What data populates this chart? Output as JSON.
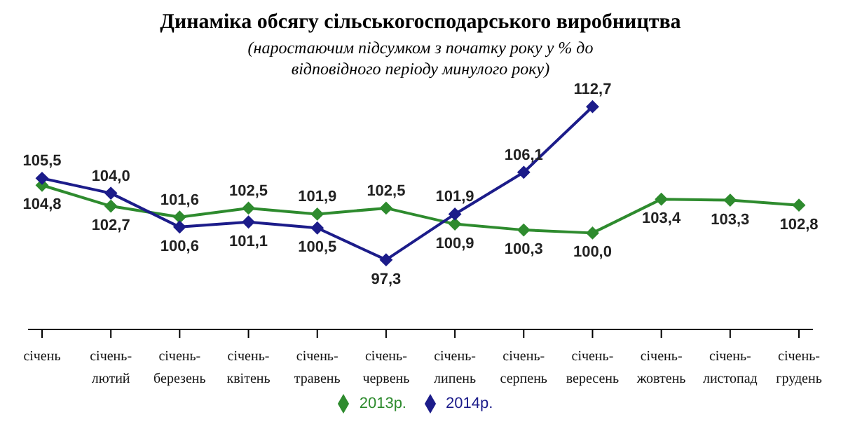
{
  "chart_data": {
    "type": "line",
    "title": "Динаміка обсягу сільськогосподарського виробництва",
    "subtitle": "(наростаючим підсумком з початку року у % до відповідного періоду минулого року)",
    "categories": [
      "січень",
      "січень-лютий",
      "січень-березень",
      "січень-квітень",
      "січень-травень",
      "січень-червень",
      "січень-липень",
      "січень-серпень",
      "січень-вересень",
      "січень-жовтень",
      "січень-листопад",
      "січень-грудень"
    ],
    "series": [
      {
        "name": "2013р.",
        "color": "#2e8b2e",
        "values": [
          104.8,
          102.7,
          101.6,
          102.5,
          101.9,
          102.5,
          100.9,
          100.3,
          100.0,
          103.4,
          103.3,
          102.8
        ],
        "value_labels": [
          "104,8",
          "102,7",
          "101,6",
          "102,5",
          "101,9",
          "102,5",
          "100,9",
          "100,3",
          "100,0",
          "103,4",
          "103,3",
          "102,8"
        ]
      },
      {
        "name": "2014р.",
        "color": "#1c1c8a",
        "values": [
          105.5,
          104.0,
          100.6,
          101.1,
          100.5,
          97.3,
          101.9,
          106.1,
          112.7,
          null,
          null,
          null
        ],
        "value_labels": [
          "105,5",
          "104,0",
          "100,6",
          "101,1",
          "100,5",
          "97,3",
          "101,9",
          "106,1",
          "112,7",
          null,
          null,
          null
        ]
      }
    ],
    "marker": "diamond",
    "legend": "bottom",
    "grid": false,
    "line_style": "solid"
  }
}
